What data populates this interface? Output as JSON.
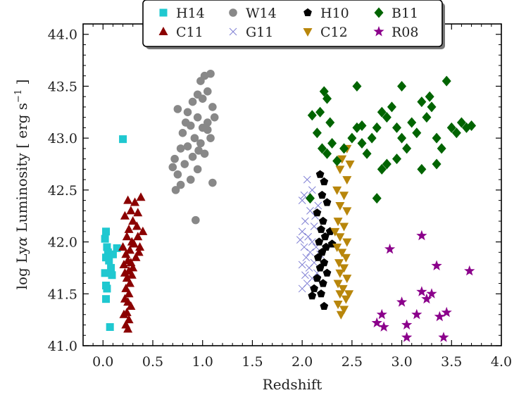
{
  "chart_data": {
    "type": "scatter",
    "xlabel": "Redshift",
    "ylabel_prefix": "log Ly",
    "ylabel_alpha": "α",
    "ylabel_mid": " Luminosity [ erg s",
    "ylabel_sup": "−1",
    "ylabel_end": " ]",
    "xlim": [
      -0.2,
      4.0
    ],
    "ylim": [
      41.0,
      44.1
    ],
    "xticks": [
      0.0,
      0.5,
      1.0,
      1.5,
      2.0,
      2.5,
      3.0,
      3.5,
      4.0
    ],
    "xtick_labels": [
      "0.0",
      "0.5",
      "1.0",
      "1.5",
      "2.0",
      "2.5",
      "3.0",
      "3.5",
      "4.0"
    ],
    "yticks": [
      41.0,
      41.5,
      42.0,
      42.5,
      43.0,
      43.5,
      44.0
    ],
    "ytick_labels": [
      "41.0",
      "41.5",
      "42.0",
      "42.5",
      "43.0",
      "43.5",
      "44.0"
    ],
    "legend_position": "top-center",
    "series": [
      {
        "name": "H14",
        "marker": "square",
        "color": "#1fc8d0",
        "points": [
          [
            0.03,
            42.1
          ],
          [
            0.02,
            42.03
          ],
          [
            0.04,
            41.95
          ],
          [
            0.05,
            41.9
          ],
          [
            0.03,
            41.85
          ],
          [
            0.06,
            41.82
          ],
          [
            0.08,
            41.75
          ],
          [
            0.1,
            41.88
          ],
          [
            0.14,
            41.94
          ],
          [
            0.02,
            41.7
          ],
          [
            0.09,
            41.68
          ],
          [
            0.03,
            41.58
          ],
          [
            0.04,
            41.55
          ],
          [
            0.03,
            41.45
          ],
          [
            0.07,
            41.18
          ],
          [
            0.2,
            42.99
          ]
        ]
      },
      {
        "name": "C11",
        "marker": "triangle-up",
        "color": "#8b0000",
        "points": [
          [
            0.25,
            42.4
          ],
          [
            0.32,
            42.38
          ],
          [
            0.28,
            42.3
          ],
          [
            0.38,
            42.43
          ],
          [
            0.35,
            42.28
          ],
          [
            0.22,
            42.25
          ],
          [
            0.3,
            42.2
          ],
          [
            0.26,
            42.12
          ],
          [
            0.34,
            42.15
          ],
          [
            0.24,
            42.05
          ],
          [
            0.29,
            42.0
          ],
          [
            0.31,
            41.98
          ],
          [
            0.2,
            41.95
          ],
          [
            0.27,
            41.92
          ],
          [
            0.36,
            41.9
          ],
          [
            0.23,
            41.88
          ],
          [
            0.33,
            41.85
          ],
          [
            0.25,
            41.82
          ],
          [
            0.28,
            41.8
          ],
          [
            0.21,
            41.78
          ],
          [
            0.3,
            41.75
          ],
          [
            0.26,
            41.72
          ],
          [
            0.22,
            41.7
          ],
          [
            0.29,
            41.68
          ],
          [
            0.24,
            41.65
          ],
          [
            0.27,
            41.6
          ],
          [
            0.23,
            41.55
          ],
          [
            0.26,
            41.5
          ],
          [
            0.22,
            41.45
          ],
          [
            0.25,
            41.42
          ],
          [
            0.28,
            41.38
          ],
          [
            0.24,
            41.32
          ],
          [
            0.21,
            41.3
          ],
          [
            0.26,
            41.25
          ],
          [
            0.23,
            41.2
          ],
          [
            0.25,
            41.16
          ],
          [
            0.35,
            42.05
          ],
          [
            0.37,
            41.95
          ],
          [
            0.4,
            42.1
          ]
        ]
      },
      {
        "name": "W14",
        "marker": "circle",
        "color": "#888888",
        "points": [
          [
            1.08,
            43.62
          ],
          [
            1.02,
            43.6
          ],
          [
            0.98,
            43.55
          ],
          [
            1.05,
            43.45
          ],
          [
            0.95,
            43.42
          ],
          [
            1.0,
            43.38
          ],
          [
            0.9,
            43.35
          ],
          [
            1.1,
            43.3
          ],
          [
            0.85,
            43.25
          ],
          [
            0.75,
            43.28
          ],
          [
            0.95,
            43.2
          ],
          [
            1.05,
            43.15
          ],
          [
            0.88,
            43.12
          ],
          [
            1.0,
            43.1
          ],
          [
            0.8,
            43.05
          ],
          [
            0.92,
            43.0
          ],
          [
            1.08,
            43.0
          ],
          [
            0.98,
            42.95
          ],
          [
            0.85,
            42.92
          ],
          [
            0.78,
            42.9
          ],
          [
            1.02,
            42.85
          ],
          [
            0.9,
            42.82
          ],
          [
            0.72,
            42.8
          ],
          [
            0.82,
            42.75
          ],
          [
            0.95,
            42.7
          ],
          [
            0.75,
            42.65
          ],
          [
            0.88,
            42.6
          ],
          [
            0.78,
            42.55
          ],
          [
            0.73,
            42.5
          ],
          [
            1.1,
            42.57
          ],
          [
            0.93,
            42.21
          ],
          [
            1.12,
            43.2
          ],
          [
            1.05,
            43.08
          ],
          [
            0.83,
            43.15
          ],
          [
            0.96,
            42.88
          ],
          [
            0.7,
            42.72
          ]
        ]
      },
      {
        "name": "G11",
        "marker": "x",
        "color": "#6a6acd",
        "points": [
          [
            2.05,
            42.6
          ],
          [
            2.1,
            42.5
          ],
          [
            2.0,
            42.4
          ],
          [
            2.08,
            42.3
          ],
          [
            2.03,
            42.2
          ],
          [
            2.12,
            42.15
          ],
          [
            2.0,
            42.1
          ],
          [
            2.06,
            42.05
          ],
          [
            2.1,
            42.0
          ],
          [
            2.02,
            41.95
          ],
          [
            2.08,
            41.9
          ],
          [
            2.04,
            41.85
          ],
          [
            2.12,
            41.8
          ],
          [
            2.0,
            41.78
          ],
          [
            2.07,
            41.75
          ],
          [
            2.15,
            41.7
          ],
          [
            2.03,
            41.68
          ],
          [
            2.1,
            41.65
          ],
          [
            2.05,
            41.6
          ],
          [
            2.0,
            41.55
          ],
          [
            2.13,
            42.25
          ],
          [
            2.16,
            42.35
          ],
          [
            1.98,
            42.02
          ],
          [
            2.18,
            41.88
          ],
          [
            2.02,
            42.45
          ],
          [
            2.14,
            41.95
          ]
        ]
      },
      {
        "name": "H10",
        "marker": "pentagon",
        "color": "#000000",
        "points": [
          [
            2.18,
            42.65
          ],
          [
            2.22,
            42.58
          ],
          [
            2.2,
            42.45
          ],
          [
            2.25,
            42.38
          ],
          [
            2.15,
            42.28
          ],
          [
            2.21,
            42.2
          ],
          [
            2.19,
            42.12
          ],
          [
            2.23,
            42.05
          ],
          [
            2.17,
            42.0
          ],
          [
            2.24,
            41.95
          ],
          [
            2.2,
            41.9
          ],
          [
            2.16,
            41.85
          ],
          [
            2.22,
            41.8
          ],
          [
            2.18,
            41.75
          ],
          [
            2.25,
            41.7
          ],
          [
            2.15,
            41.65
          ],
          [
            2.21,
            41.6
          ],
          [
            2.12,
            41.55
          ],
          [
            2.19,
            41.5
          ],
          [
            2.1,
            41.48
          ],
          [
            2.28,
            42.1
          ],
          [
            2.3,
            41.98
          ],
          [
            2.22,
            41.38
          ]
        ]
      },
      {
        "name": "C12",
        "marker": "triangle-down",
        "color": "#b8860b",
        "points": [
          [
            2.45,
            42.9
          ],
          [
            2.4,
            42.8
          ],
          [
            2.38,
            42.7
          ],
          [
            2.45,
            42.6
          ],
          [
            2.35,
            42.5
          ],
          [
            2.42,
            42.45
          ],
          [
            2.38,
            42.35
          ],
          [
            2.45,
            42.3
          ],
          [
            2.36,
            42.2
          ],
          [
            2.42,
            42.15
          ],
          [
            2.38,
            42.05
          ],
          [
            2.45,
            42.0
          ],
          [
            2.35,
            41.95
          ],
          [
            2.4,
            41.9
          ],
          [
            2.44,
            41.85
          ],
          [
            2.37,
            41.8
          ],
          [
            2.42,
            41.75
          ],
          [
            2.38,
            41.7
          ],
          [
            2.45,
            41.65
          ],
          [
            2.36,
            41.6
          ],
          [
            2.41,
            41.55
          ],
          [
            2.38,
            41.5
          ],
          [
            2.44,
            41.45
          ],
          [
            2.36,
            41.4
          ],
          [
            2.42,
            41.35
          ],
          [
            2.39,
            41.3
          ],
          [
            2.47,
            41.5
          ],
          [
            2.33,
            42.1
          ],
          [
            2.48,
            42.75
          ]
        ]
      },
      {
        "name": "B11",
        "marker": "diamond",
        "color": "#006400",
        "points": [
          [
            2.55,
            43.5
          ],
          [
            2.22,
            43.45
          ],
          [
            2.25,
            43.38
          ],
          [
            2.18,
            43.25
          ],
          [
            2.28,
            43.15
          ],
          [
            2.15,
            43.05
          ],
          [
            2.3,
            42.95
          ],
          [
            2.2,
            42.9
          ],
          [
            2.25,
            42.85
          ],
          [
            2.35,
            42.78
          ],
          [
            2.42,
            42.9
          ],
          [
            2.5,
            43.0
          ],
          [
            2.55,
            43.1
          ],
          [
            2.6,
            42.95
          ],
          [
            2.65,
            42.85
          ],
          [
            2.7,
            43.0
          ],
          [
            2.75,
            43.1
          ],
          [
            2.8,
            43.25
          ],
          [
            2.85,
            43.2
          ],
          [
            2.9,
            43.3
          ],
          [
            2.95,
            43.1
          ],
          [
            3.0,
            43.0
          ],
          [
            3.05,
            42.9
          ],
          [
            3.1,
            43.15
          ],
          [
            3.15,
            43.05
          ],
          [
            3.2,
            43.35
          ],
          [
            3.25,
            43.2
          ],
          [
            3.3,
            43.3
          ],
          [
            3.35,
            43.0
          ],
          [
            3.4,
            42.9
          ],
          [
            3.45,
            43.55
          ],
          [
            3.5,
            43.1
          ],
          [
            3.55,
            43.05
          ],
          [
            3.6,
            43.15
          ],
          [
            3.65,
            43.1
          ],
          [
            3.7,
            43.12
          ],
          [
            2.85,
            42.75
          ],
          [
            2.8,
            42.7
          ],
          [
            3.0,
            43.5
          ],
          [
            3.2,
            42.7
          ],
          [
            2.75,
            42.42
          ],
          [
            2.08,
            42.42
          ],
          [
            2.1,
            43.22
          ],
          [
            2.6,
            43.12
          ],
          [
            2.95,
            42.8
          ],
          [
            3.35,
            42.75
          ],
          [
            3.28,
            43.4
          ]
        ]
      },
      {
        "name": "R08",
        "marker": "star",
        "color": "#8b008b",
        "points": [
          [
            2.88,
            41.93
          ],
          [
            3.2,
            42.06
          ],
          [
            3.68,
            41.72
          ],
          [
            3.35,
            41.77
          ],
          [
            3.2,
            41.52
          ],
          [
            3.3,
            41.5
          ],
          [
            3.25,
            41.45
          ],
          [
            3.0,
            41.42
          ],
          [
            2.8,
            41.3
          ],
          [
            2.75,
            41.22
          ],
          [
            2.82,
            41.18
          ],
          [
            3.05,
            41.2
          ],
          [
            3.15,
            41.3
          ],
          [
            3.38,
            41.28
          ],
          [
            3.45,
            41.32
          ],
          [
            3.05,
            41.08
          ],
          [
            3.42,
            41.08
          ]
        ]
      }
    ]
  }
}
